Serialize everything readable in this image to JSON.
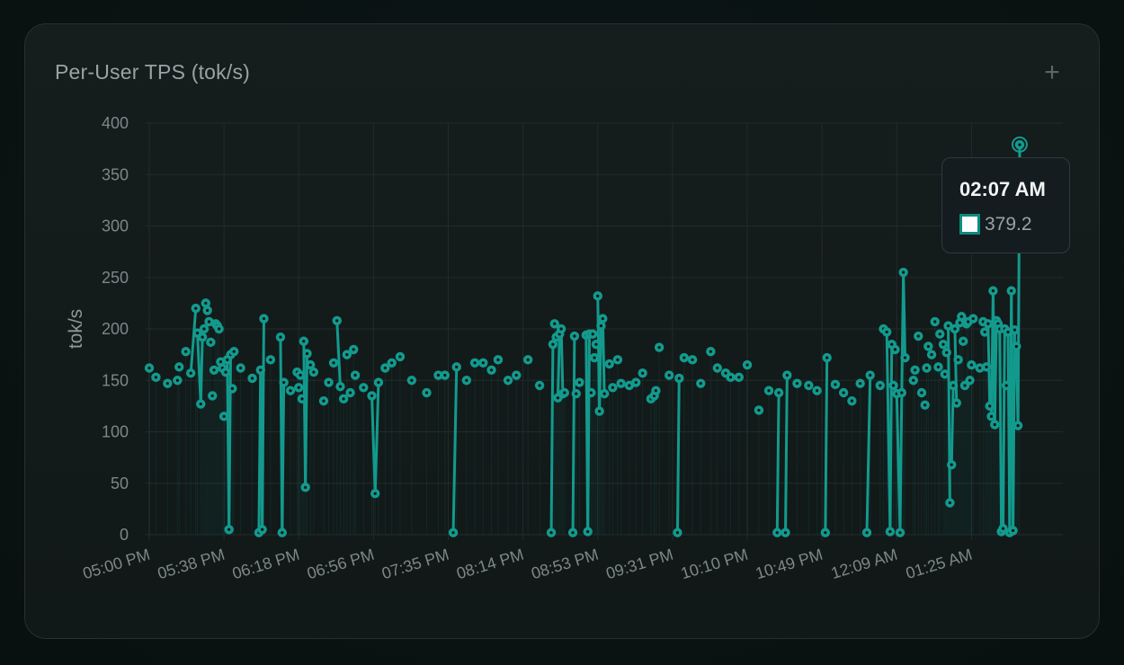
{
  "card": {
    "title": "Per-User TPS (tok/s)",
    "add_glyph": "+"
  },
  "tooltip": {
    "time": "02:07 AM",
    "value": "379.2"
  },
  "colors": {
    "series": "#139a8d",
    "grid": "#222b2b",
    "tooltip_swatch_border": "#0e8b80"
  },
  "chart_data": {
    "type": "scatter",
    "title": "Per-User TPS (tok/s)",
    "ylabel": "tok/s",
    "xlabel": "",
    "ylim": [
      0,
      400
    ],
    "yticks": [
      0,
      50,
      100,
      150,
      200,
      250,
      300,
      350,
      400
    ],
    "xlim": [
      0,
      550
    ],
    "xticks": [
      {
        "t": 0,
        "label": "05:00 PM"
      },
      {
        "t": 45,
        "label": "05:38 PM"
      },
      {
        "t": 90,
        "label": "06:18 PM"
      },
      {
        "t": 135,
        "label": "06:56 PM"
      },
      {
        "t": 180,
        "label": "07:35 PM"
      },
      {
        "t": 225,
        "label": "08:14 PM"
      },
      {
        "t": 270,
        "label": "08:53 PM"
      },
      {
        "t": 315,
        "label": "09:31 PM"
      },
      {
        "t": 360,
        "label": "10:10 PM"
      },
      {
        "t": 405,
        "label": "10:49 PM"
      },
      {
        "t": 450,
        "label": "12:09 AM"
      },
      {
        "t": 495,
        "label": "01:25 AM"
      }
    ],
    "grid": true,
    "x_units": "minutes after 05:00 PM (uneven time axis, tick labels as shown)",
    "series": [
      {
        "points": [
          [
            0,
            162
          ],
          [
            4,
            153
          ],
          [
            11,
            147
          ],
          [
            17,
            150
          ],
          [
            18,
            163
          ],
          [
            22,
            178
          ],
          [
            25,
            157
          ],
          [
            28,
            220
          ],
          [
            29,
            196
          ],
          [
            31,
            127
          ],
          [
            32,
            192
          ],
          [
            33,
            200
          ],
          [
            34,
            225
          ],
          [
            35,
            218
          ],
          [
            36,
            207
          ],
          [
            37,
            187
          ],
          [
            38,
            135
          ],
          [
            39,
            160
          ],
          [
            40,
            205
          ],
          [
            41,
            203
          ],
          [
            42,
            200
          ],
          [
            43,
            168
          ],
          [
            44,
            162
          ],
          [
            45,
            115
          ],
          [
            46,
            158
          ],
          [
            47,
            170
          ],
          [
            48,
            5
          ],
          [
            49,
            175
          ],
          [
            50,
            142
          ],
          [
            51,
            178
          ],
          [
            55,
            162
          ],
          [
            62,
            152
          ],
          [
            66,
            2
          ],
          [
            67,
            160
          ],
          [
            68,
            5
          ],
          [
            69,
            210
          ],
          [
            73,
            170
          ],
          [
            79,
            192
          ],
          [
            80,
            2
          ],
          [
            81,
            148
          ],
          [
            85,
            140
          ],
          [
            89,
            158
          ],
          [
            90,
            143
          ],
          [
            91,
            155
          ],
          [
            92,
            132
          ],
          [
            93,
            188
          ],
          [
            94,
            46
          ],
          [
            95,
            176
          ],
          [
            97,
            165
          ],
          [
            99,
            158
          ],
          [
            105,
            130
          ],
          [
            108,
            148
          ],
          [
            111,
            167
          ],
          [
            113,
            208
          ],
          [
            115,
            144
          ],
          [
            117,
            132
          ],
          [
            119,
            175
          ],
          [
            121,
            138
          ],
          [
            123,
            180
          ],
          [
            124,
            155
          ],
          [
            129,
            143
          ],
          [
            134,
            135
          ],
          [
            136,
            40
          ],
          [
            138,
            148
          ],
          [
            142,
            162
          ],
          [
            146,
            167
          ],
          [
            151,
            173
          ],
          [
            158,
            150
          ],
          [
            167,
            138
          ],
          [
            174,
            155
          ],
          [
            178,
            155
          ],
          [
            183,
            2
          ],
          [
            185,
            163
          ],
          [
            191,
            150
          ],
          [
            196,
            167
          ],
          [
            201,
            167
          ],
          [
            206,
            160
          ],
          [
            210,
            170
          ],
          [
            216,
            150
          ],
          [
            221,
            155
          ],
          [
            228,
            170
          ],
          [
            235,
            145
          ],
          [
            242,
            2
          ],
          [
            243,
            185
          ],
          [
            244,
            205
          ],
          [
            245,
            192
          ],
          [
            246,
            133
          ],
          [
            247,
            195
          ],
          [
            248,
            200
          ],
          [
            249,
            137
          ],
          [
            250,
            138
          ],
          [
            255,
            2
          ],
          [
            256,
            193
          ],
          [
            257,
            137
          ],
          [
            259,
            148
          ],
          [
            263,
            194
          ],
          [
            264,
            3
          ],
          [
            265,
            195
          ],
          [
            266,
            138
          ],
          [
            267,
            195
          ],
          [
            268,
            172
          ],
          [
            269,
            185
          ],
          [
            270,
            232
          ],
          [
            271,
            120
          ],
          [
            272,
            203
          ],
          [
            273,
            210
          ],
          [
            274,
            137
          ],
          [
            277,
            166
          ],
          [
            279,
            143
          ],
          [
            282,
            170
          ],
          [
            284,
            147
          ],
          [
            289,
            145
          ],
          [
            293,
            148
          ],
          [
            297,
            157
          ],
          [
            302,
            132
          ],
          [
            304,
            135
          ],
          [
            305,
            140
          ],
          [
            307,
            182
          ],
          [
            313,
            155
          ],
          [
            318,
            2
          ],
          [
            319,
            152
          ],
          [
            322,
            172
          ],
          [
            327,
            170
          ],
          [
            332,
            147
          ],
          [
            338,
            178
          ],
          [
            342,
            162
          ],
          [
            347,
            157
          ],
          [
            350,
            153
          ],
          [
            355,
            153
          ],
          [
            360,
            165
          ],
          [
            367,
            121
          ],
          [
            373,
            140
          ],
          [
            378,
            2
          ],
          [
            379,
            138
          ],
          [
            383,
            2
          ],
          [
            384,
            155
          ],
          [
            390,
            147
          ],
          [
            397,
            145
          ],
          [
            402,
            140
          ],
          [
            407,
            2
          ],
          [
            408,
            172
          ],
          [
            413,
            146
          ],
          [
            418,
            138
          ],
          [
            423,
            130
          ],
          [
            428,
            147
          ],
          [
            432,
            2
          ],
          [
            434,
            155
          ],
          [
            440,
            145
          ],
          [
            442,
            200
          ],
          [
            444,
            197
          ],
          [
            446,
            3
          ],
          [
            447,
            185
          ],
          [
            448,
            145
          ],
          [
            449,
            180
          ],
          [
            450,
            137
          ],
          [
            452,
            2
          ],
          [
            453,
            138
          ],
          [
            454,
            255
          ],
          [
            455,
            172
          ],
          [
            460,
            150
          ],
          [
            461,
            160
          ],
          [
            463,
            193
          ],
          [
            465,
            138
          ],
          [
            467,
            126
          ],
          [
            468,
            162
          ],
          [
            469,
            183
          ],
          [
            471,
            175
          ],
          [
            473,
            207
          ],
          [
            475,
            163
          ],
          [
            476,
            195
          ],
          [
            478,
            185
          ],
          [
            479,
            156
          ],
          [
            480,
            177
          ],
          [
            481,
            203
          ],
          [
            482,
            31
          ],
          [
            483,
            68
          ],
          [
            484,
            145
          ],
          [
            485,
            200
          ],
          [
            486,
            128
          ],
          [
            487,
            170
          ],
          [
            488,
            206
          ],
          [
            489,
            212
          ],
          [
            490,
            188
          ],
          [
            491,
            145
          ],
          [
            492,
            205
          ],
          [
            493,
            207
          ],
          [
            494,
            150
          ],
          [
            495,
            165
          ],
          [
            496,
            210
          ],
          [
            500,
            162
          ],
          [
            502,
            207
          ],
          [
            503,
            197
          ],
          [
            504,
            163
          ],
          [
            505,
            205
          ],
          [
            506,
            125
          ],
          [
            507,
            115
          ],
          [
            508,
            237
          ],
          [
            509,
            107
          ],
          [
            510,
            208
          ],
          [
            511,
            205
          ],
          [
            512,
            200
          ],
          [
            513,
            3
          ],
          [
            514,
            6
          ],
          [
            515,
            200
          ],
          [
            516,
            145
          ],
          [
            517,
            197
          ],
          [
            518,
            2
          ],
          [
            519,
            237
          ],
          [
            520,
            4
          ],
          [
            521,
            199
          ],
          [
            522,
            183
          ],
          [
            523,
            106
          ],
          [
            524,
            379
          ]
        ]
      }
    ],
    "highlighted_point": {
      "time": "02:07 AM",
      "value": 379.2
    }
  }
}
